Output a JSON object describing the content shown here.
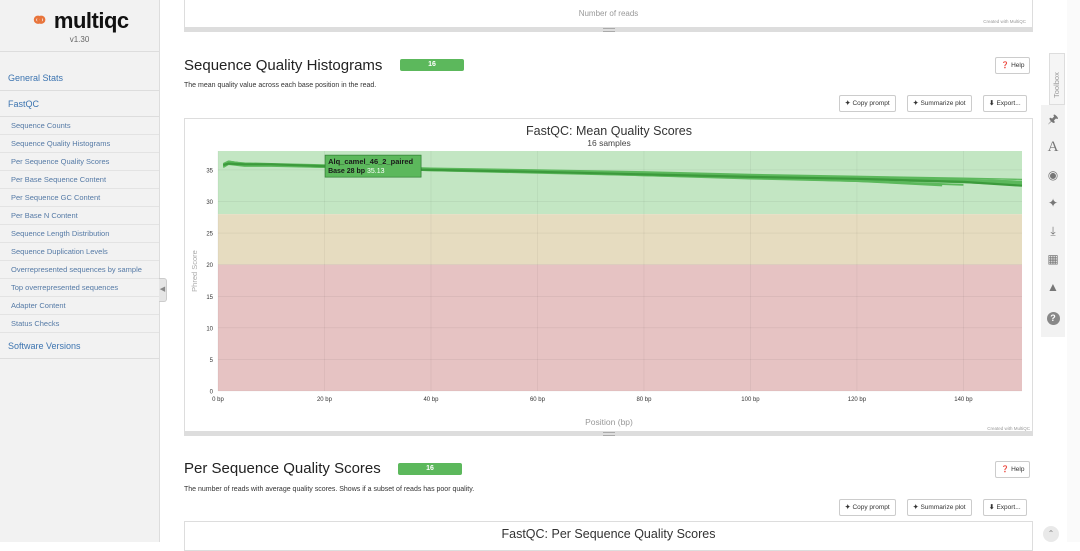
{
  "sidebar": {
    "brand": "multiqc",
    "version": "v1.30",
    "top_items": [
      {
        "label": "General Stats"
      },
      {
        "label": "FastQC"
      }
    ],
    "fastqc_items": [
      {
        "label": "Sequence Counts"
      },
      {
        "label": "Sequence Quality Histograms"
      },
      {
        "label": "Per Sequence Quality Scores"
      },
      {
        "label": "Per Base Sequence Content"
      },
      {
        "label": "Per Sequence GC Content"
      },
      {
        "label": "Per Base N Content"
      },
      {
        "label": "Sequence Length Distribution"
      },
      {
        "label": "Sequence Duplication Levels"
      },
      {
        "label": "Overrepresented sequences by sample"
      },
      {
        "label": "Top overrepresented sequences"
      },
      {
        "label": "Adapter Content"
      },
      {
        "label": "Status Checks"
      }
    ],
    "bottom_items": [
      {
        "label": "Software Versions"
      }
    ]
  },
  "top_plot": {
    "xlabel": "Number of reads",
    "credit": "Created with MultiQC"
  },
  "section1": {
    "title": "Sequence Quality Histograms",
    "badge": "16",
    "description": "The mean quality value across each base position in the read.",
    "help": "Help",
    "copy": "Copy prompt",
    "summarize": "Summarize plot",
    "export": "Export..."
  },
  "section2": {
    "title": "Per Sequence Quality Scores",
    "badge": "16",
    "description": "The number of reads with average quality scores. Shows if a subset of reads has poor quality.",
    "help": "Help",
    "copy": "Copy prompt",
    "summarize": "Summarize plot",
    "export": "Export...",
    "chart_title": "FastQC: Per Sequence Quality Scores"
  },
  "toolbox": {
    "label": "Toolbox",
    "icons": [
      "pin-icon",
      "font-icon",
      "eye-icon",
      "magic-icon",
      "download-icon",
      "save-icon",
      "graduation-cap-icon",
      "question-icon"
    ]
  },
  "colors": {
    "good": "#c3e6c3",
    "warn": "#e6dcc0",
    "fail": "#e6c3c3",
    "line": "#5cb85c",
    "badge": "#5cb85c",
    "link": "#3c74b0"
  },
  "chart_data": {
    "type": "line",
    "title": "FastQC: Mean Quality Scores",
    "subtitle": "16 samples",
    "xlabel": "Position (bp)",
    "ylabel": "Phred Score",
    "xlim": [
      0,
      151
    ],
    "ylim": [
      0,
      38
    ],
    "x_ticks": [
      "0 bp",
      "20 bp",
      "40 bp",
      "60 bp",
      "80 bp",
      "100 bp",
      "120 bp",
      "140 bp"
    ],
    "y_ticks": [
      "0",
      "5",
      "10",
      "15",
      "20",
      "25",
      "30",
      "35"
    ],
    "bands": [
      {
        "from": 28,
        "to": 38,
        "zone": "good"
      },
      {
        "from": 20,
        "to": 28,
        "zone": "warn"
      },
      {
        "from": 0,
        "to": 20,
        "zone": "fail"
      }
    ],
    "series_count": 16,
    "series": [
      {
        "x": [
          1,
          2,
          5,
          10,
          20,
          28,
          40,
          60,
          80,
          100,
          120,
          140,
          151
        ],
        "y": [
          35.8,
          36.0,
          35.9,
          35.9,
          35.6,
          35.13,
          35.0,
          34.7,
          34.3,
          33.9,
          33.6,
          33.1,
          32.5
        ]
      },
      {
        "x": [
          1,
          2,
          5,
          10,
          20,
          28,
          40,
          60,
          80,
          100,
          120,
          140,
          151
        ],
        "y": [
          35.7,
          36.2,
          35.8,
          35.8,
          35.6,
          35.4,
          35.1,
          34.8,
          34.4,
          34.0,
          33.7,
          33.3,
          32.9
        ]
      },
      {
        "x": [
          1,
          2,
          5,
          10,
          20,
          28,
          40,
          60,
          80,
          100,
          120,
          140,
          151
        ],
        "y": [
          36.0,
          36.4,
          36.0,
          35.9,
          35.7,
          35.5,
          35.2,
          34.9,
          34.6,
          34.2,
          33.9,
          33.5,
          33.2
        ]
      },
      {
        "x": [
          1,
          2,
          5,
          10,
          20,
          28,
          40,
          60,
          80,
          100,
          120,
          140,
          151
        ],
        "y": [
          35.5,
          36.1,
          35.7,
          35.7,
          35.4,
          35.3,
          35.0,
          34.6,
          34.2,
          33.8,
          33.4,
          33.0,
          32.6
        ]
      },
      {
        "x": [
          1,
          2,
          5,
          10,
          20,
          28,
          40,
          60,
          80,
          100,
          120,
          140,
          151
        ],
        "y": [
          35.9,
          36.3,
          36.1,
          36.0,
          35.8,
          35.6,
          35.3,
          35.0,
          34.7,
          34.3,
          34.0,
          33.7,
          33.5
        ]
      },
      {
        "x": [
          1,
          2,
          5,
          10,
          20,
          28,
          40,
          60,
          80,
          100,
          120,
          140,
          151
        ],
        "y": [
          35.6,
          36.0,
          35.8,
          35.8,
          35.5,
          35.4,
          35.1,
          34.7,
          34.3,
          33.9,
          33.5,
          33.1,
          32.8
        ]
      },
      {
        "x": [
          1,
          2,
          5,
          10,
          20,
          28,
          40,
          60,
          80,
          100,
          120,
          140
        ],
        "y": [
          35.4,
          35.9,
          35.6,
          35.6,
          35.4,
          35.2,
          34.9,
          34.5,
          34.1,
          33.6,
          33.2,
          32.6
        ]
      },
      {
        "x": [
          1,
          2,
          5,
          10,
          20,
          28,
          40,
          60,
          80,
          100,
          120,
          140
        ],
        "y": [
          35.6,
          36.2,
          35.8,
          35.7,
          35.5,
          35.3,
          35.0,
          34.6,
          34.2,
          33.7,
          33.3,
          32.7
        ]
      },
      {
        "x": [
          1,
          2,
          5,
          10,
          20,
          28,
          40,
          60,
          80,
          100,
          120,
          136
        ],
        "y": [
          35.8,
          36.2,
          35.9,
          35.8,
          35.6,
          35.4,
          35.0,
          34.6,
          34.2,
          33.8,
          33.3,
          32.6
        ]
      },
      {
        "x": [
          1,
          2,
          5,
          10,
          20,
          28,
          40,
          60,
          80,
          100,
          120,
          136
        ],
        "y": [
          35.7,
          36.1,
          35.8,
          35.8,
          35.5,
          35.3,
          35.0,
          34.6,
          34.1,
          33.7,
          33.2,
          32.5
        ]
      },
      {
        "x": [
          1,
          2,
          5,
          10,
          20,
          28,
          40,
          60,
          80,
          100,
          120,
          140,
          151
        ],
        "y": [
          35.9,
          36.3,
          35.9,
          35.9,
          35.7,
          35.5,
          35.2,
          34.8,
          34.5,
          34.1,
          33.7,
          33.4,
          33.0
        ]
      },
      {
        "x": [
          1,
          2,
          5,
          10,
          20,
          28,
          40,
          60,
          80,
          100,
          120,
          140,
          151
        ],
        "y": [
          35.6,
          36.1,
          35.7,
          35.7,
          35.5,
          35.3,
          35.0,
          34.7,
          34.3,
          33.9,
          33.6,
          33.2,
          32.8
        ]
      },
      {
        "x": [
          1,
          2,
          5,
          10,
          20,
          28,
          40,
          60,
          80,
          100,
          120,
          140,
          151
        ],
        "y": [
          35.8,
          36.2,
          35.9,
          35.8,
          35.6,
          35.4,
          35.1,
          34.8,
          34.4,
          34.0,
          33.7,
          33.4,
          33.1
        ]
      },
      {
        "x": [
          1,
          2,
          5,
          10,
          20,
          28,
          40,
          60,
          80,
          100,
          120,
          140,
          151
        ],
        "y": [
          35.5,
          36.0,
          35.7,
          35.7,
          35.4,
          35.2,
          34.9,
          34.6,
          34.2,
          33.8,
          33.5,
          33.1,
          32.7
        ]
      },
      {
        "x": [
          1,
          2,
          5,
          10,
          20,
          28,
          40,
          60,
          80,
          100,
          120,
          140,
          151
        ],
        "y": [
          35.7,
          36.2,
          35.8,
          35.8,
          35.6,
          35.4,
          35.1,
          34.7,
          34.3,
          33.9,
          33.6,
          33.2,
          32.9
        ]
      },
      {
        "x": [
          1,
          2,
          5,
          10,
          20,
          28,
          40,
          60,
          80,
          100,
          120,
          140,
          151
        ],
        "y": [
          35.9,
          36.4,
          36.0,
          35.9,
          35.7,
          35.5,
          35.2,
          34.9,
          34.5,
          34.1,
          33.8,
          33.5,
          33.2
        ]
      }
    ],
    "tooltip": {
      "sample": "Alq_camel_46_2_paired",
      "label": "Base 28 bp",
      "value": "35.13",
      "x": 28,
      "y": 35.13
    },
    "credit": "Created with MultiQC"
  }
}
